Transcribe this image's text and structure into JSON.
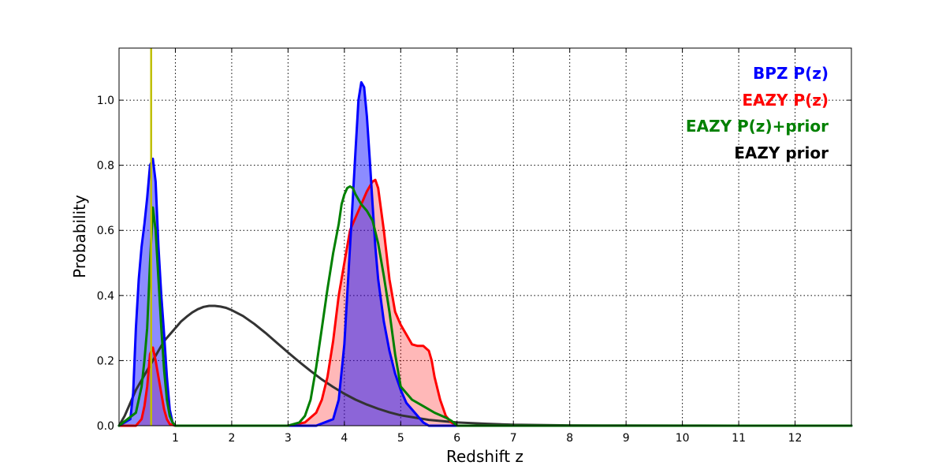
{
  "chart_data": {
    "type": "line",
    "xlabel": "Redshift z",
    "ylabel": "Probability",
    "xlim": [
      0,
      13
    ],
    "ylim": [
      0,
      1.16
    ],
    "xticks": [
      1,
      2,
      3,
      4,
      5,
      6,
      7,
      8,
      9,
      10,
      11,
      12
    ],
    "yticks": [
      0.0,
      0.2,
      0.4,
      0.6,
      0.8,
      1.0
    ],
    "ytick_labels": [
      "0.0",
      "0.2",
      "0.4",
      "0.6",
      "0.8",
      "1.0"
    ],
    "grid": true,
    "legend_position": "top-right",
    "marker_line": {
      "x": 0.57,
      "color": "#bfbf00"
    },
    "series": [
      {
        "name": "EAZY prior",
        "color": "#333333",
        "fill": null,
        "x": [
          0,
          0.1,
          0.2,
          0.3,
          0.4,
          0.5,
          0.6,
          0.7,
          0.8,
          0.9,
          1.0,
          1.1,
          1.2,
          1.3,
          1.4,
          1.5,
          1.6,
          1.7,
          1.8,
          1.9,
          2.0,
          2.2,
          2.4,
          2.6,
          2.8,
          3.0,
          3.2,
          3.4,
          3.6,
          3.8,
          4.0,
          4.2,
          4.4,
          4.6,
          4.8,
          5.0,
          5.5,
          6.0,
          6.5,
          7.0,
          8.0,
          9.0,
          10.0,
          11.0,
          12.0,
          13.0
        ],
        "y": [
          0.0,
          0.03,
          0.07,
          0.11,
          0.14,
          0.17,
          0.2,
          0.23,
          0.26,
          0.28,
          0.3,
          0.32,
          0.335,
          0.348,
          0.358,
          0.365,
          0.368,
          0.368,
          0.366,
          0.362,
          0.355,
          0.337,
          0.313,
          0.285,
          0.255,
          0.225,
          0.196,
          0.168,
          0.142,
          0.119,
          0.098,
          0.08,
          0.065,
          0.052,
          0.041,
          0.032,
          0.018,
          0.01,
          0.006,
          0.003,
          0.001,
          0.0005,
          0.0002,
          0.0001,
          0.0,
          0.0
        ]
      },
      {
        "name": "EAZY P(z)",
        "color": "#ff0000",
        "fill": "rgba(255,0,0,0.28)",
        "x": [
          0,
          0.3,
          0.4,
          0.45,
          0.5,
          0.55,
          0.6,
          0.65,
          0.7,
          0.75,
          0.8,
          0.85,
          0.9,
          1.0,
          3.0,
          3.3,
          3.5,
          3.6,
          3.7,
          3.8,
          3.9,
          4.0,
          4.1,
          4.2,
          4.3,
          4.4,
          4.5,
          4.55,
          4.6,
          4.7,
          4.8,
          4.9,
          5.0,
          5.1,
          5.2,
          5.3,
          5.4,
          5.5,
          5.55,
          5.6,
          5.7,
          5.8,
          5.9,
          6.0,
          13.0
        ],
        "y": [
          0,
          0,
          0.02,
          0.06,
          0.12,
          0.22,
          0.24,
          0.2,
          0.15,
          0.1,
          0.05,
          0.02,
          0.005,
          0.0,
          0.0,
          0.01,
          0.04,
          0.08,
          0.15,
          0.26,
          0.4,
          0.5,
          0.6,
          0.64,
          0.68,
          0.72,
          0.75,
          0.755,
          0.73,
          0.6,
          0.45,
          0.35,
          0.31,
          0.28,
          0.25,
          0.245,
          0.245,
          0.23,
          0.2,
          0.15,
          0.08,
          0.03,
          0.01,
          0.0,
          0.0
        ]
      },
      {
        "name": "BPZ P(z)",
        "color": "#0000ff",
        "fill": "rgba(0,0,255,0.45)",
        "x": [
          0,
          0.2,
          0.25,
          0.3,
          0.35,
          0.4,
          0.45,
          0.5,
          0.55,
          0.6,
          0.65,
          0.7,
          0.75,
          0.8,
          0.85,
          0.9,
          0.95,
          1.0,
          3.5,
          3.8,
          3.9,
          4.0,
          4.05,
          4.1,
          4.15,
          4.2,
          4.25,
          4.3,
          4.35,
          4.4,
          4.45,
          4.5,
          4.55,
          4.6,
          4.7,
          4.8,
          4.9,
          5.0,
          5.1,
          5.2,
          5.3,
          5.4,
          5.5,
          13.0
        ],
        "y": [
          0,
          0.02,
          0.1,
          0.3,
          0.45,
          0.55,
          0.62,
          0.7,
          0.8,
          0.82,
          0.75,
          0.55,
          0.4,
          0.28,
          0.15,
          0.05,
          0.01,
          0.0,
          0.0,
          0.02,
          0.08,
          0.25,
          0.4,
          0.55,
          0.7,
          0.85,
          1.0,
          1.055,
          1.04,
          0.95,
          0.82,
          0.68,
          0.55,
          0.45,
          0.32,
          0.23,
          0.16,
          0.11,
          0.07,
          0.05,
          0.03,
          0.01,
          0.0,
          0.0
        ]
      },
      {
        "name": "EAZY P(z)+prior",
        "color": "#008000",
        "fill": null,
        "x": [
          0,
          0.3,
          0.4,
          0.45,
          0.5,
          0.55,
          0.6,
          0.65,
          0.7,
          0.75,
          0.8,
          0.85,
          0.9,
          0.95,
          1.0,
          3.0,
          3.2,
          3.3,
          3.4,
          3.5,
          3.6,
          3.7,
          3.8,
          3.9,
          3.95,
          4.0,
          4.05,
          4.1,
          4.15,
          4.2,
          4.3,
          4.4,
          4.5,
          4.6,
          4.7,
          4.8,
          4.9,
          5.0,
          5.2,
          5.4,
          5.6,
          5.8,
          5.9,
          6.0,
          13.0
        ],
        "y": [
          0,
          0.04,
          0.12,
          0.2,
          0.3,
          0.5,
          0.67,
          0.6,
          0.45,
          0.3,
          0.17,
          0.08,
          0.03,
          0.01,
          0.0,
          0.0,
          0.01,
          0.03,
          0.08,
          0.18,
          0.3,
          0.42,
          0.53,
          0.62,
          0.68,
          0.71,
          0.73,
          0.735,
          0.73,
          0.71,
          0.68,
          0.66,
          0.63,
          0.56,
          0.46,
          0.35,
          0.22,
          0.12,
          0.08,
          0.06,
          0.04,
          0.025,
          0.015,
          0.0,
          0.0
        ]
      }
    ],
    "legend": [
      {
        "label": "BPZ P(z)",
        "color": "#0000ff"
      },
      {
        "label": "EAZY P(z)",
        "color": "#ff0000"
      },
      {
        "label": "EAZY P(z)+prior",
        "color": "#008000"
      },
      {
        "label": "EAZY prior",
        "color": "#000000"
      }
    ]
  }
}
